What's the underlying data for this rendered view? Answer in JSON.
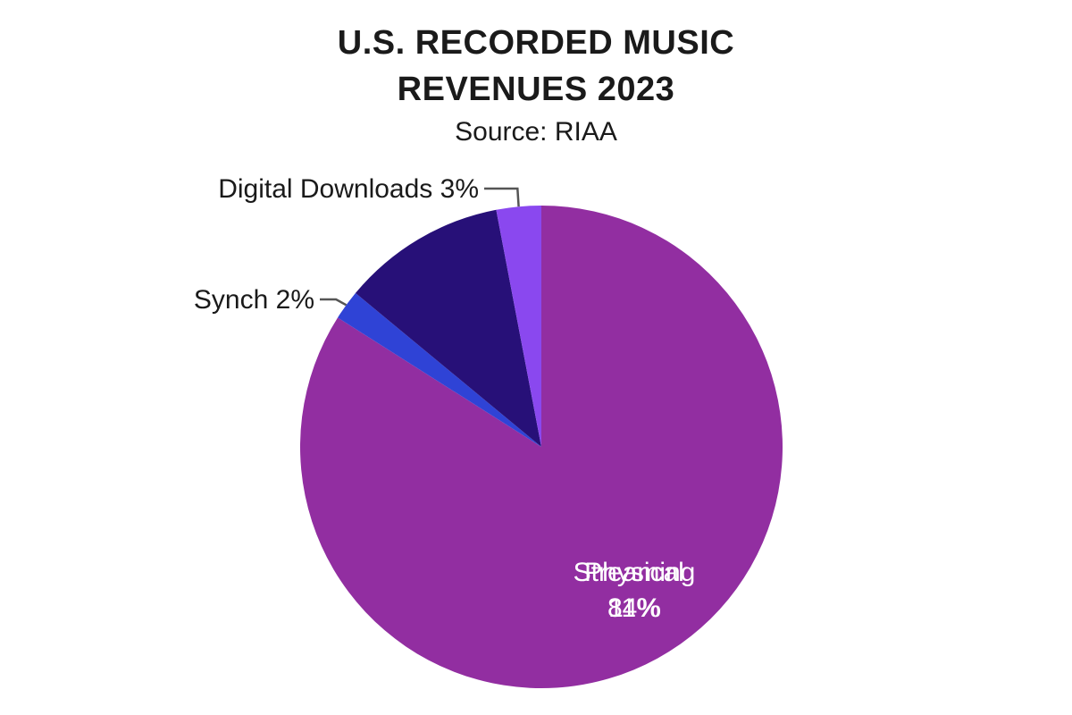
{
  "chart_data": {
    "type": "pie",
    "title_lines": [
      "U.S. RECORDED MUSIC",
      "REVENUES 2023"
    ],
    "subtitle": "Source: RIAA",
    "start_angle_deg": 0,
    "direction": "clockwise",
    "slices": [
      {
        "name": "Streaming",
        "percent_label": "84%",
        "value": 84,
        "color": "#922ea1"
      },
      {
        "name": "Synch",
        "percent_label": "2%",
        "value": 2,
        "color": "#2f43d6"
      },
      {
        "name": "Physical",
        "percent_label": "11%",
        "value": 11,
        "color": "#271078"
      },
      {
        "name": "Digital Downloads",
        "percent_label": "3%",
        "value": 3,
        "color": "#8a48ef"
      }
    ],
    "label_color_outside": "#1a1a1a",
    "label_color_inside": "#ffffff",
    "leader_color": "#555555"
  }
}
